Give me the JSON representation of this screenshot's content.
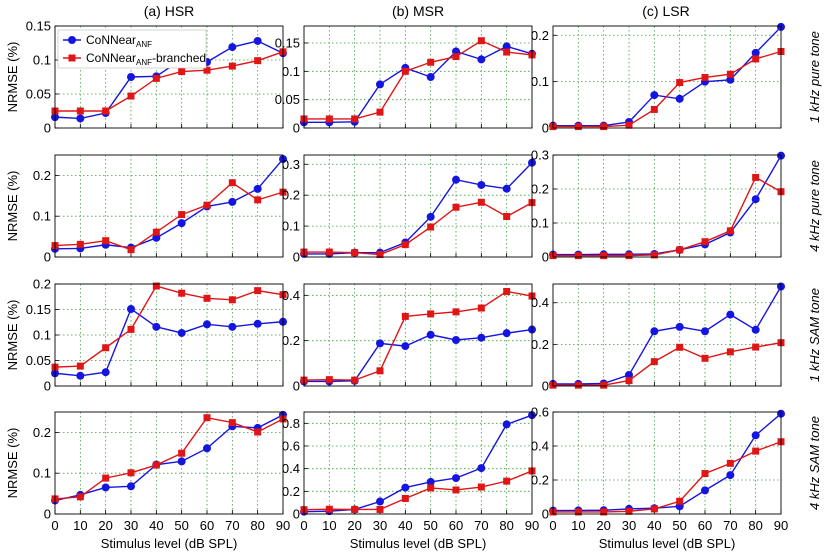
{
  "colors": {
    "blue": "#1515e0",
    "red": "#e01515",
    "grid": "#3a9d3a"
  },
  "legend": {
    "blue_main": "CoNNear",
    "blue_sub": "ANF",
    "red_main": "CoNNear",
    "red_sub": "ANF",
    "red_suffix": "-branched"
  },
  "columns": [
    "(a) HSR",
    "(b) MSR",
    "(c) LSR"
  ],
  "rows": [
    "1 kHz pure tone",
    "4 kHz pure tone",
    "1 kHz SAM tone",
    "4 kHz SAM tone"
  ],
  "ylabel": "NRMSE (%)",
  "xlabel": "Stimulus level (dB SPL)",
  "chart_data": [
    {
      "type": "line",
      "title": "(a) HSR",
      "row": "1 kHz pure tone",
      "xlabel": "",
      "ylabel": "NRMSE (%)",
      "x": [
        0,
        10,
        20,
        30,
        40,
        50,
        60,
        70,
        80,
        90
      ],
      "xlim": [
        0,
        90
      ],
      "ylim": [
        0,
        0.15
      ],
      "yticks": [
        0,
        0.05,
        0.1,
        0.15
      ],
      "ytick_labels": [
        "0",
        "0.05",
        "0.1",
        "0.15"
      ],
      "grid": true,
      "legend": "top-left",
      "series": [
        {
          "name": "CoNNear_ANF",
          "color": "blue",
          "marker": "circle",
          "values": [
            0.016,
            0.014,
            0.022,
            0.075,
            0.076,
            0.101,
            0.097,
            0.119,
            0.128,
            0.11
          ]
        },
        {
          "name": "CoNNear_ANF-branched",
          "color": "red",
          "marker": "square",
          "values": [
            0.025,
            0.025,
            0.025,
            0.047,
            0.073,
            0.083,
            0.085,
            0.091,
            0.099,
            0.112
          ]
        }
      ]
    },
    {
      "type": "line",
      "title": "(b) MSR",
      "row": "1 kHz pure tone",
      "x": [
        0,
        10,
        20,
        30,
        40,
        50,
        60,
        70,
        80,
        90
      ],
      "xlim": [
        0,
        90
      ],
      "ylim": [
        0,
        0.18
      ],
      "yticks": [
        0,
        0.05,
        0.1,
        0.15
      ],
      "ytick_labels": [
        "0",
        "0.05",
        "0.1",
        "0.15"
      ],
      "grid": true,
      "series": [
        {
          "name": "CoNNear_ANF",
          "color": "blue",
          "marker": "circle",
          "values": [
            0.01,
            0.01,
            0.011,
            0.077,
            0.106,
            0.09,
            0.135,
            0.121,
            0.144,
            0.131
          ]
        },
        {
          "name": "CoNNear_ANF-branched",
          "color": "red",
          "marker": "square",
          "values": [
            0.016,
            0.016,
            0.016,
            0.028,
            0.1,
            0.116,
            0.126,
            0.154,
            0.134,
            0.129
          ]
        }
      ]
    },
    {
      "type": "line",
      "title": "(c) LSR",
      "row": "1 kHz pure tone",
      "x": [
        0,
        10,
        20,
        30,
        40,
        50,
        60,
        70,
        80,
        90
      ],
      "xlim": [
        0,
        90
      ],
      "ylim": [
        0,
        0.22
      ],
      "yticks": [
        0,
        0.1,
        0.2
      ],
      "ytick_labels": [
        "0",
        "0.1",
        "0.2"
      ],
      "grid": true,
      "series": [
        {
          "name": "CoNNear_ANF",
          "color": "blue",
          "marker": "circle",
          "values": [
            0.005,
            0.005,
            0.005,
            0.013,
            0.071,
            0.063,
            0.1,
            0.104,
            0.162,
            0.218
          ]
        },
        {
          "name": "CoNNear_ANF-branched",
          "color": "red",
          "marker": "square",
          "values": [
            0.003,
            0.003,
            0.003,
            0.006,
            0.04,
            0.098,
            0.109,
            0.116,
            0.149,
            0.165
          ]
        }
      ]
    },
    {
      "type": "line",
      "title": "(a) HSR",
      "row": "4 kHz pure tone",
      "ylabel": "NRMSE (%)",
      "x": [
        0,
        10,
        20,
        30,
        40,
        50,
        60,
        70,
        80,
        90
      ],
      "xlim": [
        0,
        90
      ],
      "ylim": [
        0,
        0.25
      ],
      "yticks": [
        0,
        0.1,
        0.2
      ],
      "ytick_labels": [
        "0",
        "0.1",
        "0.2"
      ],
      "grid": true,
      "series": [
        {
          "name": "CoNNear_ANF",
          "color": "blue",
          "marker": "circle",
          "values": [
            0.02,
            0.021,
            0.03,
            0.023,
            0.047,
            0.083,
            0.124,
            0.135,
            0.167,
            0.24
          ]
        },
        {
          "name": "CoNNear_ANF-branched",
          "color": "red",
          "marker": "square",
          "values": [
            0.028,
            0.031,
            0.04,
            0.018,
            0.061,
            0.104,
            0.127,
            0.182,
            0.14,
            0.159
          ]
        }
      ]
    },
    {
      "type": "line",
      "title": "(b) MSR",
      "row": "4 kHz pure tone",
      "x": [
        0,
        10,
        20,
        30,
        40,
        50,
        60,
        70,
        80,
        90
      ],
      "xlim": [
        0,
        90
      ],
      "ylim": [
        0,
        0.33
      ],
      "yticks": [
        0,
        0.1,
        0.2,
        0.3
      ],
      "ytick_labels": [
        "0",
        "0.1",
        "0.2",
        "0.3"
      ],
      "grid": true,
      "series": [
        {
          "name": "CoNNear_ANF",
          "color": "blue",
          "marker": "circle",
          "values": [
            0.01,
            0.01,
            0.014,
            0.014,
            0.047,
            0.13,
            0.25,
            0.233,
            0.221,
            0.305
          ]
        },
        {
          "name": "CoNNear_ANF-branched",
          "color": "red",
          "marker": "square",
          "values": [
            0.016,
            0.016,
            0.014,
            0.008,
            0.04,
            0.097,
            0.161,
            0.177,
            0.131,
            0.176
          ]
        }
      ]
    },
    {
      "type": "line",
      "title": "(c) LSR",
      "row": "4 kHz pure tone",
      "x": [
        0,
        10,
        20,
        30,
        40,
        50,
        60,
        70,
        80,
        90
      ],
      "xlim": [
        0,
        90
      ],
      "ylim": [
        0,
        0.3
      ],
      "yticks": [
        0,
        0.1,
        0.2,
        0.3
      ],
      "ytick_labels": [
        "0",
        "0.1",
        "0.2",
        "0.3"
      ],
      "grid": true,
      "series": [
        {
          "name": "CoNNear_ANF",
          "color": "blue",
          "marker": "circle",
          "values": [
            0.007,
            0.007,
            0.008,
            0.008,
            0.009,
            0.021,
            0.037,
            0.072,
            0.17,
            0.298
          ]
        },
        {
          "name": "CoNNear_ANF-branched",
          "color": "red",
          "marker": "square",
          "values": [
            0.004,
            0.004,
            0.004,
            0.004,
            0.006,
            0.021,
            0.045,
            0.077,
            0.234,
            0.192
          ]
        }
      ]
    },
    {
      "type": "line",
      "title": "(a) HSR",
      "row": "1 kHz SAM tone",
      "ylabel": "NRMSE (%)",
      "x": [
        0,
        10,
        20,
        30,
        40,
        50,
        60,
        70,
        80,
        90
      ],
      "xlim": [
        0,
        90
      ],
      "ylim": [
        0,
        0.2
      ],
      "yticks": [
        0,
        0.05,
        0.1,
        0.15,
        0.2
      ],
      "ytick_labels": [
        "0",
        "0.05",
        "0.1",
        "0.15",
        "0.2"
      ],
      "grid": true,
      "series": [
        {
          "name": "CoNNear_ANF",
          "color": "blue",
          "marker": "circle",
          "values": [
            0.025,
            0.02,
            0.027,
            0.151,
            0.116,
            0.104,
            0.121,
            0.116,
            0.122,
            0.126
          ]
        },
        {
          "name": "CoNNear_ANF-branched",
          "color": "red",
          "marker": "square",
          "values": [
            0.037,
            0.039,
            0.075,
            0.111,
            0.196,
            0.182,
            0.172,
            0.169,
            0.187,
            0.179
          ]
        }
      ]
    },
    {
      "type": "line",
      "title": "(b) MSR",
      "row": "1 kHz SAM tone",
      "x": [
        0,
        10,
        20,
        30,
        40,
        50,
        60,
        70,
        80,
        90
      ],
      "xlim": [
        0,
        90
      ],
      "ylim": [
        0,
        0.45
      ],
      "yticks": [
        0,
        0.2,
        0.4
      ],
      "ytick_labels": [
        "0",
        "0.2",
        "0.4"
      ],
      "grid": true,
      "series": [
        {
          "name": "CoNNear_ANF",
          "color": "blue",
          "marker": "circle",
          "values": [
            0.02,
            0.02,
            0.023,
            0.188,
            0.176,
            0.226,
            0.203,
            0.213,
            0.233,
            0.249
          ]
        },
        {
          "name": "CoNNear_ANF-branched",
          "color": "red",
          "marker": "square",
          "values": [
            0.026,
            0.028,
            0.026,
            0.067,
            0.307,
            0.318,
            0.327,
            0.344,
            0.417,
            0.397
          ]
        }
      ]
    },
    {
      "type": "line",
      "title": "(c) LSR",
      "row": "1 kHz SAM tone",
      "x": [
        0,
        10,
        20,
        30,
        40,
        50,
        60,
        70,
        80,
        90
      ],
      "xlim": [
        0,
        90
      ],
      "ylim": [
        0,
        0.49
      ],
      "yticks": [
        0,
        0.2,
        0.4
      ],
      "ytick_labels": [
        "0",
        "0.2",
        "0.4"
      ],
      "grid": true,
      "series": [
        {
          "name": "CoNNear_ANF",
          "color": "blue",
          "marker": "circle",
          "values": [
            0.01,
            0.01,
            0.012,
            0.053,
            0.263,
            0.284,
            0.263,
            0.343,
            0.27,
            0.478
          ]
        },
        {
          "name": "CoNNear_ANF-branched",
          "color": "red",
          "marker": "square",
          "values": [
            0.004,
            0.004,
            0.004,
            0.026,
            0.117,
            0.186,
            0.133,
            0.164,
            0.187,
            0.208
          ]
        }
      ]
    },
    {
      "type": "line",
      "title": "(a) HSR",
      "row": "4 kHz SAM tone",
      "xlabel": "Stimulus level (dB SPL)",
      "ylabel": "NRMSE (%)",
      "x": [
        0,
        10,
        20,
        30,
        40,
        50,
        60,
        70,
        80,
        90
      ],
      "xticks": [
        0,
        10,
        20,
        30,
        40,
        50,
        60,
        70,
        80,
        90
      ],
      "xlim": [
        0,
        90
      ],
      "ylim": [
        0,
        0.25
      ],
      "yticks": [
        0,
        0.1,
        0.2
      ],
      "ytick_labels": [
        "0",
        "0.1",
        "0.2"
      ],
      "grid": true,
      "series": [
        {
          "name": "CoNNear_ANF",
          "color": "blue",
          "marker": "circle",
          "values": [
            0.033,
            0.047,
            0.065,
            0.068,
            0.121,
            0.129,
            0.161,
            0.215,
            0.211,
            0.243
          ]
        },
        {
          "name": "CoNNear_ANF-branched",
          "color": "red",
          "marker": "square",
          "values": [
            0.037,
            0.042,
            0.088,
            0.101,
            0.12,
            0.149,
            0.236,
            0.224,
            0.201,
            0.233
          ]
        }
      ]
    },
    {
      "type": "line",
      "title": "(b) MSR",
      "row": "4 kHz SAM tone",
      "xlabel": "Stimulus level (dB SPL)",
      "x": [
        0,
        10,
        20,
        30,
        40,
        50,
        60,
        70,
        80,
        90
      ],
      "xticks": [
        0,
        10,
        20,
        30,
        40,
        50,
        60,
        70,
        80,
        90
      ],
      "xlim": [
        0,
        90
      ],
      "ylim": [
        0,
        0.9
      ],
      "yticks": [
        0,
        0.2,
        0.4,
        0.6,
        0.8
      ],
      "ytick_labels": [
        "0",
        "0.2",
        "0.4",
        "0.6",
        "0.8"
      ],
      "grid": true,
      "series": [
        {
          "name": "CoNNear_ANF",
          "color": "blue",
          "marker": "circle",
          "values": [
            0.02,
            0.025,
            0.04,
            0.11,
            0.233,
            0.283,
            0.317,
            0.405,
            0.791,
            0.872
          ]
        },
        {
          "name": "CoNNear_ANF-branched",
          "color": "red",
          "marker": "square",
          "values": [
            0.038,
            0.042,
            0.04,
            0.04,
            0.137,
            0.23,
            0.212,
            0.238,
            0.29,
            0.38
          ]
        }
      ]
    },
    {
      "type": "line",
      "title": "(c) LSR",
      "row": "4 kHz SAM tone",
      "xlabel": "Stimulus level (dB SPL)",
      "x": [
        0,
        10,
        20,
        30,
        40,
        50,
        60,
        70,
        80,
        90
      ],
      "xticks": [
        0,
        10,
        20,
        30,
        40,
        50,
        60,
        70,
        80,
        90
      ],
      "xlim": [
        0,
        90
      ],
      "ylim": [
        0,
        0.6
      ],
      "yticks": [
        0,
        0.2,
        0.4,
        0.6
      ],
      "ytick_labels": [
        "0",
        "0.2",
        "0.4",
        "0.6"
      ],
      "grid": true,
      "series": [
        {
          "name": "CoNNear_ANF",
          "color": "blue",
          "marker": "circle",
          "values": [
            0.02,
            0.021,
            0.022,
            0.03,
            0.034,
            0.045,
            0.139,
            0.229,
            0.463,
            0.59
          ]
        },
        {
          "name": "CoNNear_ANF-branched",
          "color": "red",
          "marker": "square",
          "values": [
            0.012,
            0.012,
            0.012,
            0.016,
            0.03,
            0.075,
            0.238,
            0.298,
            0.37,
            0.425
          ]
        }
      ]
    }
  ]
}
